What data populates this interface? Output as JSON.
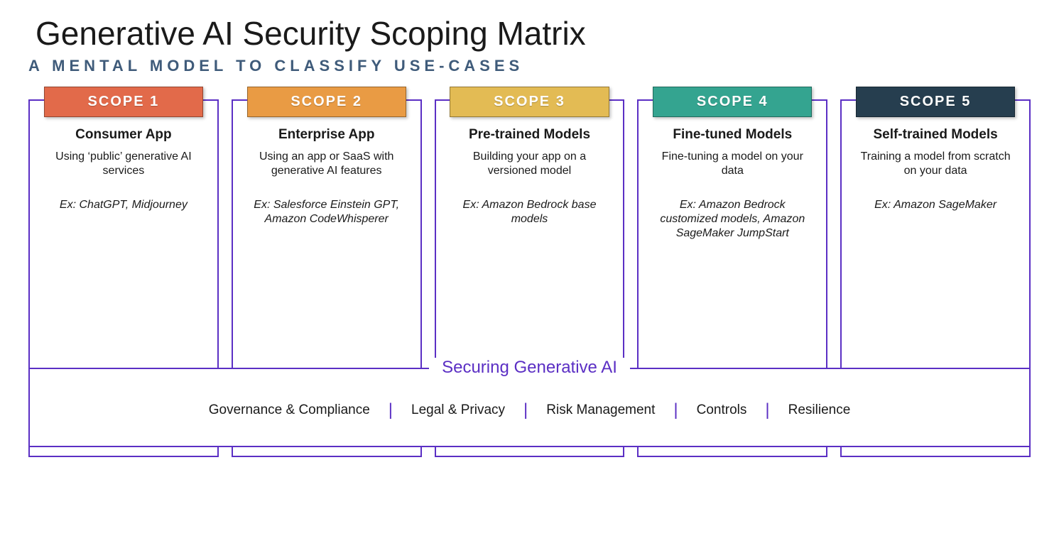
{
  "title": "Generative AI Security Scoping Matrix",
  "subtitle": "A MENTAL MODEL TO CLASSIFY USE-CASES",
  "accent_color": "#5b2fc4",
  "background_color": "#ffffff",
  "title_color": "#1a1a1a",
  "subtitle_color": "#3f5b7a",
  "title_fontsize": 46,
  "subtitle_fontsize": 22,
  "scopes": [
    {
      "badge": "SCOPE 1",
      "badge_color": "#e26a4a",
      "heading": "Consumer App",
      "desc": "Using ‘public’ generative AI services",
      "example": "Ex: ChatGPT, Midjourney"
    },
    {
      "badge": "SCOPE 2",
      "badge_color": "#e99b44",
      "heading": "Enterprise App",
      "desc": "Using an app or SaaS with generative AI features",
      "example": "Ex: Salesforce Einstein GPT, Amazon CodeWhisperer"
    },
    {
      "badge": "SCOPE 3",
      "badge_color": "#e3bb54",
      "heading": "Pre-trained Models",
      "desc": "Building your app on a versioned model",
      "example": "Ex: Amazon Bedrock base models"
    },
    {
      "badge": "SCOPE 4",
      "badge_color": "#34a490",
      "heading": "Fine-tuned Models",
      "desc": "Fine-tuning a model on your data",
      "example": "Ex: Amazon Bedrock customized models, Amazon SageMaker JumpStart"
    },
    {
      "badge": "SCOPE 5",
      "badge_color": "#263e4f",
      "heading": "Self-trained Models",
      "desc": "Training a model from scratch on your data",
      "example": "Ex: Amazon SageMaker"
    }
  ],
  "footer": {
    "header": "Securing Generative AI",
    "pillars": [
      "Governance & Compliance",
      "Legal & Privacy",
      "Risk Management",
      "Controls",
      "Resilience"
    ],
    "separator": "|",
    "header_color": "#5b2fc4",
    "pillar_fontsize": 19
  }
}
